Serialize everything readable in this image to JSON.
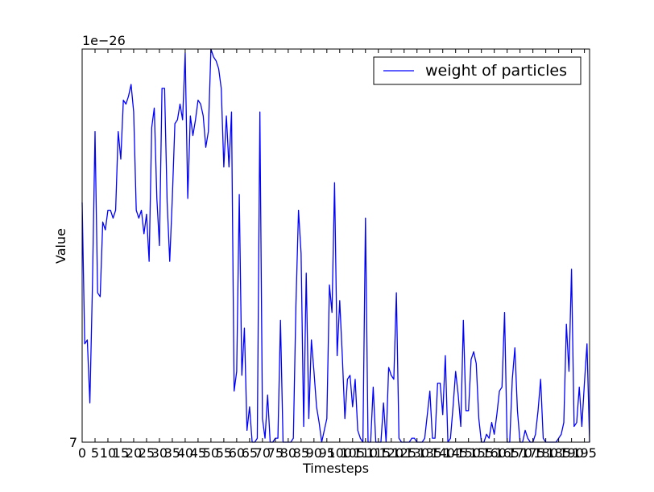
{
  "chart_data": {
    "type": "line",
    "xlabel": "Timesteps",
    "ylabel": "Value",
    "offset_text": "1e−26",
    "xlim": [
      0,
      197
    ],
    "ylim": [
      0,
      1
    ],
    "grid": false,
    "legend_position": "top-right",
    "line_color": "#0000ff",
    "x_ticks": [
      0,
      5,
      10,
      15,
      20,
      25,
      30,
      35,
      40,
      45,
      50,
      55,
      60,
      65,
      70,
      75,
      80,
      85,
      90,
      95,
      100,
      105,
      110,
      115,
      120,
      125,
      130,
      135,
      140,
      145,
      150,
      155,
      160,
      165,
      170,
      175,
      180,
      185,
      190,
      195
    ],
    "x_tick_labels": [
      "0",
      "5",
      "10",
      "15",
      "20",
      "25",
      "30",
      "35",
      "40",
      "45",
      "50",
      "55",
      "60",
      "65",
      "70",
      "75",
      "80",
      "85",
      "90",
      "95",
      "100",
      "105",
      "110",
      "115",
      "120",
      "125",
      "130",
      "135",
      "140",
      "145",
      "150",
      "155",
      "160",
      "165",
      "170",
      "175",
      "180",
      "185",
      "190",
      "195"
    ],
    "y_ticks": [
      0,
      1
    ],
    "y_tick_labels": [
      "7",
      ""
    ],
    "series": [
      {
        "name": "weight of particles",
        "x": [
          0,
          1,
          2,
          3,
          4,
          5,
          6,
          7,
          8,
          9,
          10,
          11,
          12,
          13,
          14,
          15,
          16,
          17,
          18,
          19,
          20,
          21,
          22,
          23,
          24,
          25,
          26,
          27,
          28,
          29,
          30,
          31,
          32,
          33,
          34,
          35,
          36,
          37,
          38,
          39,
          40,
          41,
          42,
          43,
          44,
          45,
          46,
          47,
          48,
          49,
          50,
          51,
          52,
          53,
          54,
          55,
          56,
          57,
          58,
          59,
          60,
          61,
          62,
          63,
          64,
          65,
          66,
          67,
          68,
          69,
          70,
          71,
          72,
          73,
          74,
          75,
          76,
          77,
          78,
          79,
          80,
          81,
          82,
          83,
          84,
          85,
          86,
          87,
          88,
          89,
          90,
          91,
          92,
          93,
          94,
          95,
          96,
          97,
          98,
          99,
          100,
          101,
          102,
          103,
          104,
          105,
          106,
          107,
          108,
          109,
          110,
          111,
          112,
          113,
          114,
          115,
          116,
          117,
          118,
          119,
          120,
          121,
          122,
          123,
          124,
          125,
          126,
          127,
          128,
          129,
          130,
          131,
          132,
          133,
          134,
          135,
          136,
          137,
          138,
          139,
          140,
          141,
          142,
          143,
          144,
          145,
          146,
          147,
          148,
          149,
          150,
          151,
          152,
          153,
          154,
          155,
          156,
          157,
          158,
          159,
          160,
          161,
          162,
          163,
          164,
          165,
          166,
          167,
          168,
          169,
          170,
          171,
          172,
          173,
          174,
          175,
          176,
          177,
          178,
          179,
          180,
          181,
          182,
          183,
          184,
          185,
          186,
          187,
          188,
          189,
          190,
          191,
          192,
          193,
          194,
          195,
          196,
          197
        ],
        "y": [
          0.61,
          0.25,
          0.26,
          0.1,
          0.4,
          0.79,
          0.38,
          0.37,
          0.56,
          0.54,
          0.59,
          0.59,
          0.57,
          0.59,
          0.79,
          0.72,
          0.87,
          0.86,
          0.88,
          0.91,
          0.84,
          0.59,
          0.57,
          0.59,
          0.53,
          0.58,
          0.46,
          0.8,
          0.85,
          0.62,
          0.5,
          0.9,
          0.9,
          0.61,
          0.46,
          0.62,
          0.81,
          0.82,
          0.86,
          0.82,
          0.99,
          0.62,
          0.83,
          0.78,
          0.82,
          0.87,
          0.86,
          0.83,
          0.75,
          0.79,
          1.0,
          0.98,
          0.97,
          0.95,
          0.9,
          0.7,
          0.83,
          0.7,
          0.84,
          0.13,
          0.18,
          0.63,
          0.17,
          0.29,
          0.03,
          0.09,
          0.0,
          0.0,
          0.01,
          0.84,
          0.06,
          0.01,
          0.12,
          0.0,
          0.0,
          0.01,
          0.01,
          0.31,
          0.0,
          0.0,
          0.0,
          0.0,
          0.01,
          0.35,
          0.59,
          0.48,
          0.04,
          0.43,
          0.06,
          0.26,
          0.18,
          0.09,
          0.05,
          0.0,
          0.03,
          0.06,
          0.4,
          0.33,
          0.66,
          0.22,
          0.36,
          0.22,
          0.06,
          0.16,
          0.17,
          0.09,
          0.16,
          0.03,
          0.01,
          0.0,
          0.57,
          0.0,
          0.0,
          0.14,
          0.0,
          0.0,
          0.0,
          0.1,
          0.0,
          0.19,
          0.17,
          0.16,
          0.38,
          0.01,
          0.0,
          0.0,
          0.0,
          0.0,
          0.01,
          0.01,
          0.0,
          0.0,
          0.0,
          0.01,
          0.07,
          0.13,
          0.01,
          0.01,
          0.15,
          0.15,
          0.07,
          0.22,
          0.0,
          0.01,
          0.09,
          0.18,
          0.12,
          0.04,
          0.31,
          0.08,
          0.08,
          0.21,
          0.23,
          0.2,
          0.06,
          0.0,
          0.0,
          0.02,
          0.01,
          0.05,
          0.02,
          0.07,
          0.13,
          0.14,
          0.33,
          0.0,
          0.0,
          0.16,
          0.24,
          0.08,
          0.0,
          0.0,
          0.03,
          0.01,
          0.0,
          0.0,
          0.02,
          0.08,
          0.16,
          0.01,
          0.0,
          0.0,
          0.0,
          0.0,
          0.0,
          0.01,
          0.02,
          0.05,
          0.3,
          0.18,
          0.44,
          0.04,
          0.05,
          0.14,
          0.04,
          0.15,
          0.25,
          0.0
        ]
      }
    ]
  }
}
